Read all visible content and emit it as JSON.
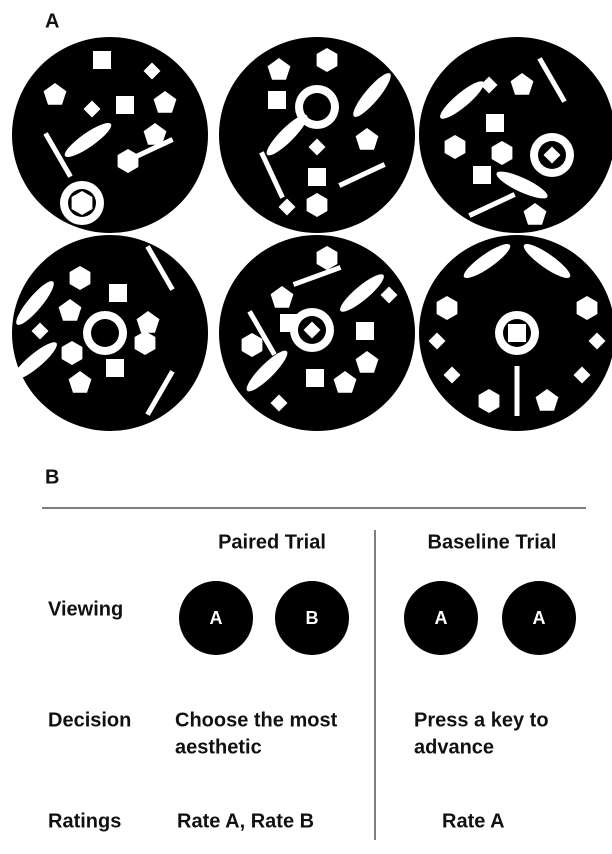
{
  "panel_a": {
    "label": "A"
  },
  "panel_b": {
    "label": "B",
    "columns": [
      "Paired Trial",
      "Baseline Trial"
    ],
    "rows": [
      {
        "label": "Viewing",
        "paired": [
          "A",
          "B"
        ],
        "baseline": [
          "A",
          "A"
        ]
      },
      {
        "label": "Decision",
        "paired": [
          "Choose the most",
          "aesthetic"
        ],
        "baseline": [
          "Press a key to",
          "advance"
        ]
      },
      {
        "label": "Ratings",
        "paired": "Rate A, Rate B",
        "baseline": "Rate A"
      }
    ]
  }
}
